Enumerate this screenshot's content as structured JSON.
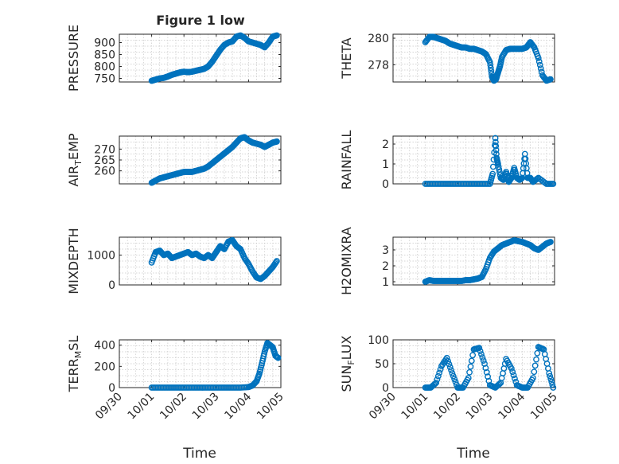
{
  "chart_data": {
    "type": "scatter",
    "figure_title": "Figure 1 low",
    "xlabel": "Time",
    "marker_color": "#0072BD",
    "grid": true,
    "x_tick_labels": [
      "09/30",
      "10/01",
      "10/02",
      "10/03",
      "10/04",
      "10/05"
    ],
    "x_ticks": [
      "2023-09-30",
      "2023-10-01",
      "2023-10-02",
      "2023-10-03",
      "2023-10-04",
      "2023-10-05"
    ],
    "xlim": [
      "2023-09-30",
      "2023-10-05"
    ],
    "panels": [
      {
        "name": "pressure",
        "ylabel": "PRESSURE",
        "ylabel_sub": "",
        "ylabel_tail": "",
        "ylim": [
          735,
          935
        ],
        "yticks": [
          750,
          800,
          850,
          900
        ],
        "x": [
          "2023-10-01 00:00",
          "2023-10-01 03:00",
          "2023-10-01 06:00",
          "2023-10-01 09:00",
          "2023-10-01 12:00",
          "2023-10-01 15:00",
          "2023-10-01 18:00",
          "2023-10-01 21:00",
          "2023-10-02 00:00",
          "2023-10-02 03:00",
          "2023-10-02 06:00",
          "2023-10-02 09:00",
          "2023-10-02 12:00",
          "2023-10-02 15:00",
          "2023-10-02 18:00",
          "2023-10-02 21:00",
          "2023-10-03 00:00",
          "2023-10-03 03:00",
          "2023-10-03 06:00",
          "2023-10-03 09:00",
          "2023-10-03 12:00",
          "2023-10-03 15:00",
          "2023-10-03 18:00",
          "2023-10-03 21:00",
          "2023-10-04 00:00",
          "2023-10-04 03:00",
          "2023-10-04 06:00",
          "2023-10-04 09:00",
          "2023-10-04 12:00",
          "2023-10-04 15:00",
          "2023-10-04 18:00",
          "2023-10-04 21:00"
        ],
        "y": [
          740,
          745,
          750,
          752,
          758,
          765,
          770,
          775,
          778,
          776,
          778,
          782,
          786,
          790,
          800,
          820,
          845,
          870,
          890,
          900,
          905,
          925,
          930,
          920,
          905,
          900,
          895,
          890,
          880,
          900,
          925,
          930
        ]
      },
      {
        "name": "theta",
        "ylabel": "THETA",
        "ylabel_sub": "",
        "ylabel_tail": "",
        "ylim": [
          276.7,
          280.3
        ],
        "yticks": [
          278,
          280
        ],
        "x": [
          "2023-10-01 00:00",
          "2023-10-01 03:00",
          "2023-10-01 06:00",
          "2023-10-01 09:00",
          "2023-10-01 12:00",
          "2023-10-01 15:00",
          "2023-10-01 18:00",
          "2023-10-01 21:00",
          "2023-10-02 00:00",
          "2023-10-02 03:00",
          "2023-10-02 06:00",
          "2023-10-02 09:00",
          "2023-10-02 12:00",
          "2023-10-02 15:00",
          "2023-10-02 18:00",
          "2023-10-02 21:00",
          "2023-10-03 00:00",
          "2023-10-03 01:30",
          "2023-10-03 03:00",
          "2023-10-03 04:30",
          "2023-10-03 06:00",
          "2023-10-03 07:30",
          "2023-10-03 09:00",
          "2023-10-03 12:00",
          "2023-10-03 15:00",
          "2023-10-03 18:00",
          "2023-10-03 21:00",
          "2023-10-04 00:00",
          "2023-10-04 03:00",
          "2023-10-04 06:00",
          "2023-10-04 09:00",
          "2023-10-04 12:00",
          "2023-10-04 15:00",
          "2023-10-04 18:00",
          "2023-10-04 21:00"
        ],
        "y": [
          279.7,
          280.1,
          280.1,
          280.0,
          279.9,
          279.8,
          279.6,
          279.5,
          279.4,
          279.3,
          279.3,
          279.2,
          279.2,
          279.1,
          279.0,
          278.8,
          278.2,
          277.1,
          276.8,
          276.9,
          277.4,
          277.9,
          278.6,
          279.1,
          279.2,
          279.2,
          279.2,
          279.2,
          279.3,
          279.7,
          279.3,
          278.5,
          277.2,
          276.8,
          276.9
        ]
      },
      {
        "name": "air-temp",
        "ylabel": "AIR",
        "ylabel_sub": "T",
        "ylabel_tail": "EMP",
        "ylim": [
          254,
          276
        ],
        "yticks": [
          260,
          265,
          270
        ],
        "x": [
          "2023-10-01 00:00",
          "2023-10-01 03:00",
          "2023-10-01 06:00",
          "2023-10-01 09:00",
          "2023-10-01 12:00",
          "2023-10-01 15:00",
          "2023-10-01 18:00",
          "2023-10-01 21:00",
          "2023-10-02 00:00",
          "2023-10-02 03:00",
          "2023-10-02 06:00",
          "2023-10-02 09:00",
          "2023-10-02 12:00",
          "2023-10-02 15:00",
          "2023-10-02 18:00",
          "2023-10-02 21:00",
          "2023-10-03 00:00",
          "2023-10-03 03:00",
          "2023-10-03 06:00",
          "2023-10-03 09:00",
          "2023-10-03 12:00",
          "2023-10-03 15:00",
          "2023-10-03 18:00",
          "2023-10-03 21:00",
          "2023-10-04 00:00",
          "2023-10-04 03:00",
          "2023-10-04 06:00",
          "2023-10-04 09:00",
          "2023-10-04 12:00",
          "2023-10-04 15:00",
          "2023-10-04 18:00",
          "2023-10-04 21:00"
        ],
        "y": [
          254.5,
          255.5,
          256.5,
          257,
          257.5,
          258,
          258.5,
          259,
          259.5,
          259.5,
          259.5,
          260,
          260.5,
          261,
          262,
          263.5,
          265,
          266.5,
          268,
          269.5,
          271,
          273,
          275,
          275.5,
          274,
          273,
          272.5,
          272,
          271,
          272,
          273,
          273.5
        ]
      },
      {
        "name": "rainfall",
        "ylabel": "RAINFALL",
        "ylabel_sub": "",
        "ylabel_tail": "",
        "ylim": [
          0,
          2.4
        ],
        "yticks": [
          0,
          1,
          2
        ],
        "x": [
          "2023-10-01 00:00",
          "2023-10-01 06:00",
          "2023-10-01 12:00",
          "2023-10-01 18:00",
          "2023-10-02 00:00",
          "2023-10-02 06:00",
          "2023-10-02 12:00",
          "2023-10-02 18:00",
          "2023-10-03 00:00",
          "2023-10-03 02:00",
          "2023-10-03 04:00",
          "2023-10-03 05:00",
          "2023-10-03 06:00",
          "2023-10-03 08:00",
          "2023-10-03 10:00",
          "2023-10-03 12:00",
          "2023-10-03 14:00",
          "2023-10-03 16:00",
          "2023-10-03 18:00",
          "2023-10-03 20:00",
          "2023-10-03 22:00",
          "2023-10-04 00:00",
          "2023-10-04 02:00",
          "2023-10-04 04:00",
          "2023-10-04 06:00",
          "2023-10-04 08:00",
          "2023-10-04 12:00",
          "2023-10-04 18:00",
          "2023-10-04 23:00"
        ],
        "y": [
          0,
          0,
          0,
          0,
          0,
          0,
          0,
          0,
          0,
          0.5,
          2.3,
          1.3,
          1.0,
          0.3,
          0.2,
          0.6,
          0.1,
          0.3,
          0.8,
          0.3,
          0.2,
          0.3,
          1.5,
          0.3,
          0.3,
          0.1,
          0.3,
          0,
          0
        ]
      },
      {
        "name": "mixdepth",
        "ylabel": "MIXDEPTH",
        "ylabel_sub": "",
        "ylabel_tail": "",
        "ylim": [
          0,
          1600
        ],
        "yticks": [
          0,
          1000
        ],
        "x": [
          "2023-10-01 00:00",
          "2023-10-01 03:00",
          "2023-10-01 06:00",
          "2023-10-01 09:00",
          "2023-10-01 12:00",
          "2023-10-01 15:00",
          "2023-10-01 18:00",
          "2023-10-01 21:00",
          "2023-10-02 00:00",
          "2023-10-02 03:00",
          "2023-10-02 06:00",
          "2023-10-02 09:00",
          "2023-10-02 12:00",
          "2023-10-02 15:00",
          "2023-10-02 18:00",
          "2023-10-02 21:00",
          "2023-10-03 00:00",
          "2023-10-03 03:00",
          "2023-10-03 06:00",
          "2023-10-03 09:00",
          "2023-10-03 12:00",
          "2023-10-03 15:00",
          "2023-10-03 18:00",
          "2023-10-03 21:00",
          "2023-10-04 00:00",
          "2023-10-04 03:00",
          "2023-10-04 06:00",
          "2023-10-04 09:00",
          "2023-10-04 12:00",
          "2023-10-04 15:00",
          "2023-10-04 18:00",
          "2023-10-04 21:00"
        ],
        "y": [
          750,
          1100,
          1150,
          1000,
          1050,
          900,
          950,
          1000,
          1050,
          1100,
          1000,
          1050,
          950,
          900,
          1000,
          900,
          1100,
          1300,
          1200,
          1450,
          1500,
          1300,
          1200,
          900,
          700,
          450,
          250,
          200,
          300,
          450,
          600,
          800
        ]
      },
      {
        "name": "h2omixra",
        "ylabel": "H2OMIXRA",
        "ylabel_sub": "",
        "ylabel_tail": "",
        "ylim": [
          0.8,
          3.8
        ],
        "yticks": [
          1,
          2,
          3
        ],
        "x": [
          "2023-10-01 00:00",
          "2023-10-01 03:00",
          "2023-10-01 06:00",
          "2023-10-01 09:00",
          "2023-10-01 12:00",
          "2023-10-01 15:00",
          "2023-10-01 18:00",
          "2023-10-01 21:00",
          "2023-10-02 00:00",
          "2023-10-02 03:00",
          "2023-10-02 06:00",
          "2023-10-02 09:00",
          "2023-10-02 12:00",
          "2023-10-02 15:00",
          "2023-10-02 18:00",
          "2023-10-02 21:00",
          "2023-10-03 00:00",
          "2023-10-03 03:00",
          "2023-10-03 06:00",
          "2023-10-03 09:00",
          "2023-10-03 12:00",
          "2023-10-03 15:00",
          "2023-10-03 18:00",
          "2023-10-03 21:00",
          "2023-10-04 00:00",
          "2023-10-04 03:00",
          "2023-10-04 06:00",
          "2023-10-04 09:00",
          "2023-10-04 12:00",
          "2023-10-04 15:00",
          "2023-10-04 18:00",
          "2023-10-04 21:00"
        ],
        "y": [
          1.0,
          1.1,
          1.05,
          1.05,
          1.05,
          1.05,
          1.05,
          1.05,
          1.05,
          1.05,
          1.1,
          1.1,
          1.15,
          1.2,
          1.3,
          1.8,
          2.5,
          2.9,
          3.1,
          3.3,
          3.4,
          3.5,
          3.6,
          3.55,
          3.5,
          3.4,
          3.3,
          3.1,
          3.0,
          3.2,
          3.4,
          3.5
        ]
      },
      {
        "name": "terr-msl",
        "ylabel": "TERR",
        "ylabel_sub": "M",
        "ylabel_tail": "SL",
        "ylim": [
          0,
          450
        ],
        "yticks": [
          0,
          200,
          400
        ],
        "x": [
          "2023-10-01 00:00",
          "2023-10-01 06:00",
          "2023-10-01 12:00",
          "2023-10-01 18:00",
          "2023-10-02 00:00",
          "2023-10-02 06:00",
          "2023-10-02 12:00",
          "2023-10-02 18:00",
          "2023-10-03 00:00",
          "2023-10-03 06:00",
          "2023-10-03 12:00",
          "2023-10-03 18:00",
          "2023-10-04 00:00",
          "2023-10-04 03:00",
          "2023-10-04 06:00",
          "2023-10-04 08:00",
          "2023-10-04 10:00",
          "2023-10-04 12:00",
          "2023-10-04 14:00",
          "2023-10-04 16:00",
          "2023-10-04 18:00",
          "2023-10-04 20:00",
          "2023-10-04 22:00"
        ],
        "y": [
          0,
          0,
          0,
          0,
          0,
          0,
          0,
          0,
          0,
          0,
          0,
          0,
          5,
          20,
          60,
          130,
          230,
          340,
          420,
          400,
          380,
          300,
          280
        ]
      },
      {
        "name": "sun-flux",
        "ylabel": "SUN",
        "ylabel_sub": "F",
        "ylabel_tail": "LUX",
        "ylim": [
          0,
          100
        ],
        "yticks": [
          0,
          50,
          100
        ],
        "x": [
          "2023-10-01 00:00",
          "2023-10-01 04:00",
          "2023-10-01 08:00",
          "2023-10-01 12:00",
          "2023-10-01 16:00",
          "2023-10-01 20:00",
          "2023-10-02 00:00",
          "2023-10-02 04:00",
          "2023-10-02 08:00",
          "2023-10-02 12:00",
          "2023-10-02 16:00",
          "2023-10-02 20:00",
          "2023-10-03 00:00",
          "2023-10-03 04:00",
          "2023-10-03 08:00",
          "2023-10-03 12:00",
          "2023-10-03 16:00",
          "2023-10-03 20:00",
          "2023-10-04 00:00",
          "2023-10-04 04:00",
          "2023-10-04 08:00",
          "2023-10-04 12:00",
          "2023-10-04 16:00",
          "2023-10-04 20:00",
          "2023-10-04 23:00"
        ],
        "y": [
          0,
          0,
          10,
          45,
          62,
          30,
          0,
          0,
          20,
          80,
          83,
          50,
          5,
          0,
          10,
          60,
          40,
          5,
          0,
          0,
          20,
          85,
          80,
          30,
          0
        ]
      }
    ]
  }
}
